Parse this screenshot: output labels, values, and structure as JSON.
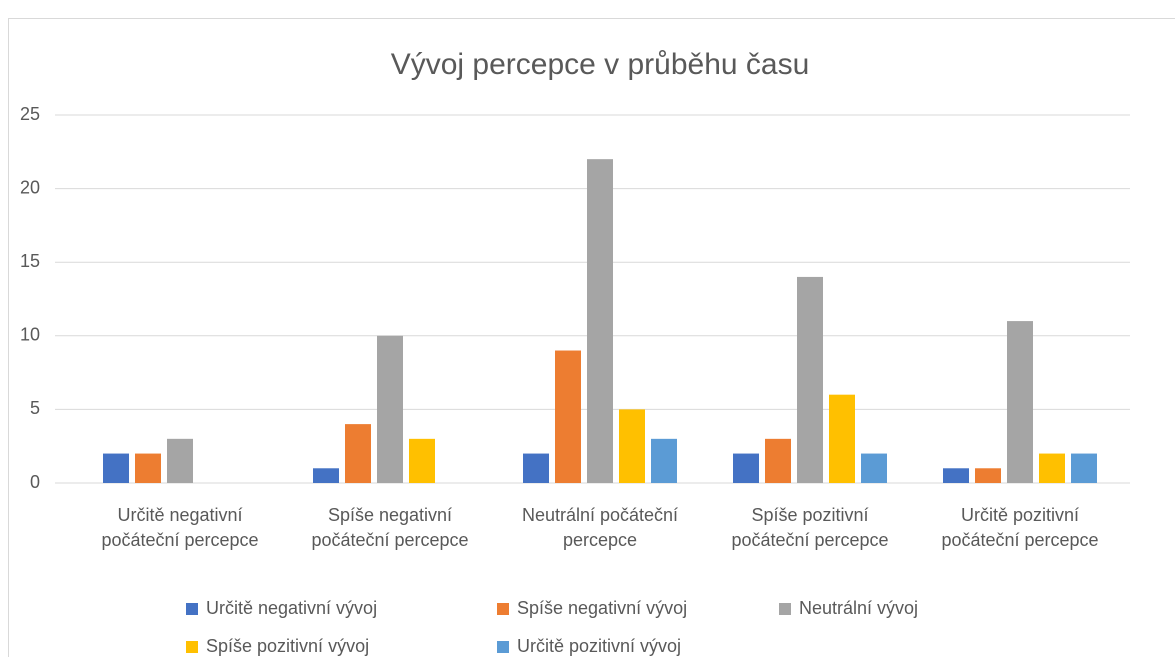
{
  "chart_data": {
    "type": "bar",
    "title": "Vývoj percepce v průběhu času",
    "categories": [
      "Určitě negativní počáteční percepce",
      "Spíše negativní počáteční percepce",
      "Neutrální počáteční percepce",
      "Spíše pozitivní počáteční percepce",
      "Určitě pozitivní počáteční percepce"
    ],
    "series": [
      {
        "name": "Určitě negativní vývoj",
        "color": "#4472c4",
        "values": [
          2,
          1,
          2,
          2,
          1
        ]
      },
      {
        "name": "Spíše negativní vývoj",
        "color": "#ed7d31",
        "values": [
          2,
          4,
          9,
          3,
          1
        ]
      },
      {
        "name": "Neutrální vývoj",
        "color": "#a5a5a5",
        "values": [
          3,
          10,
          22,
          14,
          11
        ]
      },
      {
        "name": "Spíše pozitivní vývoj",
        "color": "#ffc000",
        "values": [
          0,
          3,
          5,
          6,
          2
        ]
      },
      {
        "name": "Určitě pozitivní vývoj",
        "color": "#5b9bd5",
        "values": [
          0,
          0,
          3,
          2,
          2
        ]
      }
    ],
    "ylim": [
      0,
      25
    ],
    "yticks": [
      0,
      5,
      10,
      15,
      20,
      25
    ],
    "grid": true,
    "legend": "bottom"
  }
}
